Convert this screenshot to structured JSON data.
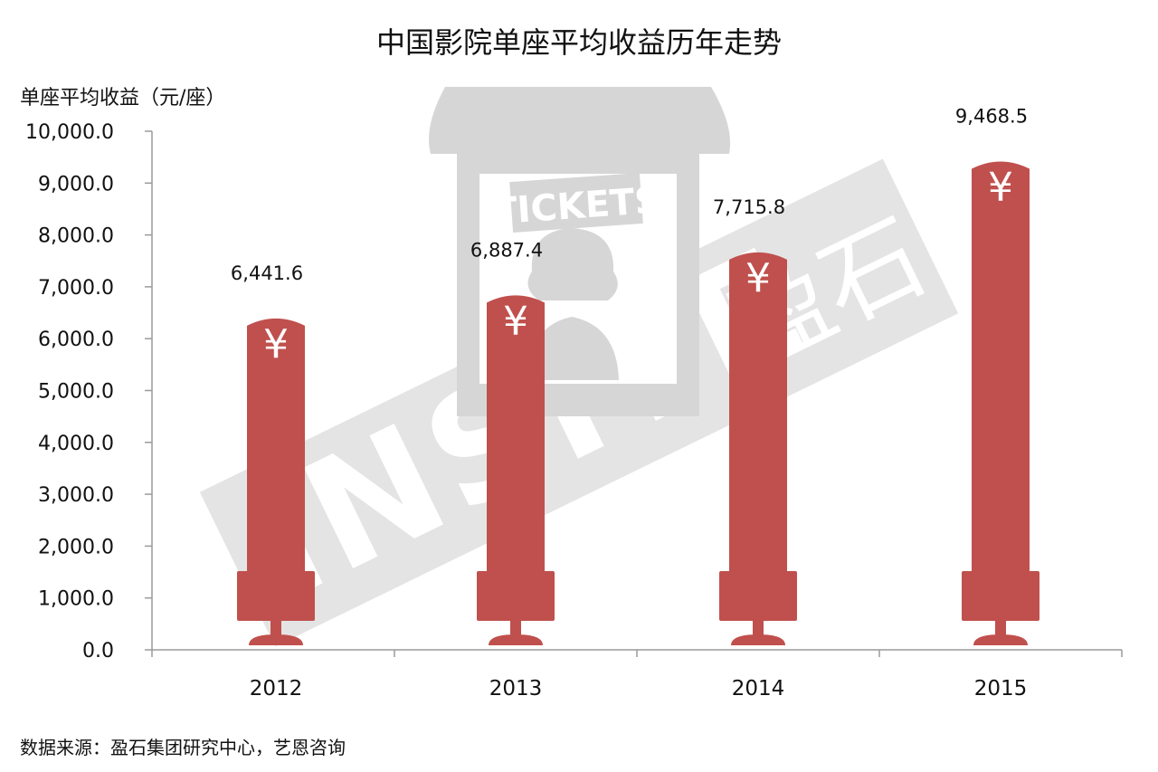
{
  "chart_data": {
    "type": "bar",
    "title": "中国影院单座平均收益历年走势",
    "ylabel": "单座平均收益（元/座）",
    "xlabel": "",
    "categories": [
      "2012",
      "2013",
      "2014",
      "2015"
    ],
    "values": [
      6441.6,
      6887.4,
      7715.8,
      9468.5
    ],
    "value_labels": [
      "6,441.6",
      "6,887.4",
      "7,715.8",
      "9,468.5"
    ],
    "ylim": [
      0,
      10000
    ],
    "yticks": [
      0,
      1000,
      2000,
      3000,
      4000,
      5000,
      6000,
      7000,
      8000,
      9000,
      10000
    ],
    "ytick_labels": [
      "0.0",
      "1,000.0",
      "2,000.0",
      "3,000.0",
      "4,000.0",
      "5,000.0",
      "6,000.0",
      "7,000.0",
      "8,000.0",
      "9,000.0",
      "10,000.0"
    ],
    "bar_symbol": "¥",
    "grid": false,
    "legend": "none",
    "bar_color": "#c0504d",
    "watermark_color": "#d6d6d6"
  },
  "watermark": {
    "ticket_text": "TICKETS",
    "brand_text": "INSITE",
    "brand_cn": "盈石"
  },
  "source": "数据来源：盈石集团研究中心，艺恩咨询"
}
